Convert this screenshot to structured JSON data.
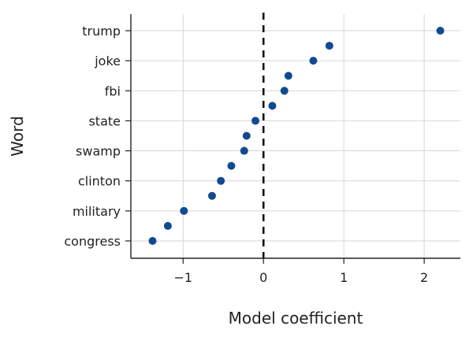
{
  "chart_data": {
    "type": "scatter",
    "title": "",
    "xlabel": "Model coefficient",
    "ylabel": "Word",
    "xlim": [
      -1.65,
      2.45
    ],
    "x_ticks": [
      -1,
      0,
      1,
      2
    ],
    "x_tick_labels": [
      "−1",
      "0",
      "1",
      "2"
    ],
    "y_tick_labels": [
      "trump",
      "joke",
      "fbi",
      "state",
      "swamp",
      "clinton",
      "military",
      "congress"
    ],
    "y_tick_positions": [
      1,
      3,
      5,
      7,
      9,
      11,
      13,
      15
    ],
    "zero_line": "dashed vertical at x = 0",
    "grid": true,
    "color": "#124a91",
    "points": [
      {
        "rank": 1,
        "x": 2.2
      },
      {
        "rank": 2,
        "x": 0.82
      },
      {
        "rank": 3,
        "x": 0.62
      },
      {
        "rank": 4,
        "x": 0.31
      },
      {
        "rank": 5,
        "x": 0.26
      },
      {
        "rank": 6,
        "x": 0.11
      },
      {
        "rank": 7,
        "x": -0.1
      },
      {
        "rank": 8,
        "x": -0.21
      },
      {
        "rank": 9,
        "x": -0.24
      },
      {
        "rank": 10,
        "x": -0.4
      },
      {
        "rank": 11,
        "x": -0.53
      },
      {
        "rank": 12,
        "x": -0.64
      },
      {
        "rank": 13,
        "x": -0.99
      },
      {
        "rank": 14,
        "x": -1.19
      },
      {
        "rank": 15,
        "x": -1.38
      }
    ]
  }
}
